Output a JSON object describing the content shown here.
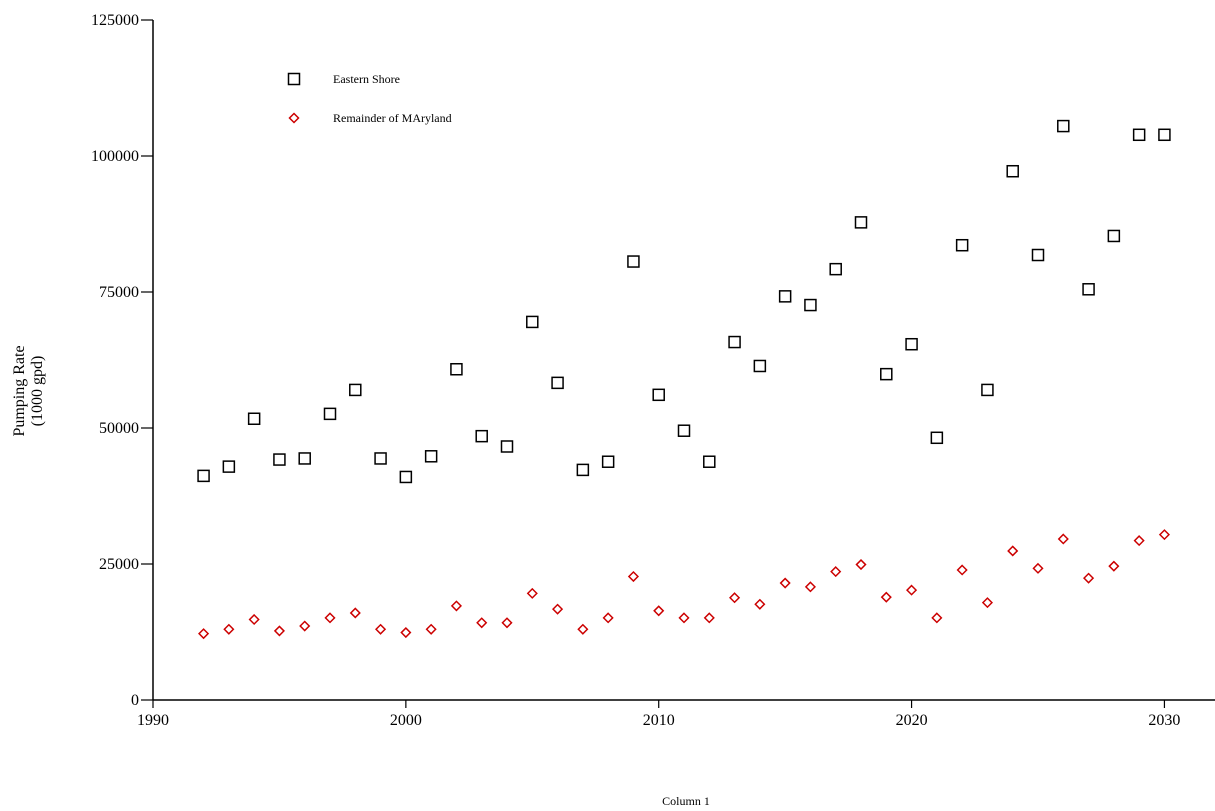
{
  "chart_data": {
    "type": "scatter",
    "xlabel": "Column 1",
    "ylabel": [
      "Pumping Rate",
      "(1000 gpd)"
    ],
    "xlim": [
      1990,
      2032
    ],
    "ylim": [
      0,
      125000
    ],
    "xticks": [
      1990,
      2000,
      2010,
      2020,
      2030
    ],
    "yticks": [
      0,
      25000,
      50000,
      75000,
      100000,
      125000
    ],
    "grid": false,
    "legend_position": "top-left",
    "series": [
      {
        "name": "Eastern Shore",
        "marker": "square",
        "color": "#000000",
        "x": [
          1992,
          1993,
          1994,
          1995,
          1996,
          1997,
          1998,
          1999,
          2000,
          2001,
          2002,
          2003,
          2004,
          2005,
          2006,
          2007,
          2008,
          2009,
          2010,
          2011,
          2012,
          2013,
          2014,
          2015,
          2016,
          2017,
          2018,
          2019,
          2020,
          2021,
          2022,
          2023,
          2024,
          2025,
          2026,
          2027,
          2028,
          2029,
          2030
        ],
        "y": [
          41200,
          42900,
          51700,
          44200,
          44400,
          52600,
          57000,
          44400,
          41000,
          44800,
          60800,
          48500,
          46600,
          69500,
          58300,
          42300,
          43800,
          80600,
          56100,
          49500,
          43800,
          65800,
          61400,
          74200,
          72600,
          79200,
          87800,
          59900,
          65400,
          48200,
          83600,
          57000,
          97200,
          81800,
          105500,
          75500,
          85300,
          103900,
          103900
        ]
      },
      {
        "name": "Remainder of MAryland",
        "marker": "diamond",
        "color": "#cc0000",
        "x": [
          1992,
          1993,
          1994,
          1995,
          1996,
          1997,
          1998,
          1999,
          2000,
          2001,
          2002,
          2003,
          2004,
          2005,
          2006,
          2007,
          2008,
          2009,
          2010,
          2011,
          2012,
          2013,
          2014,
          2015,
          2016,
          2017,
          2018,
          2019,
          2020,
          2021,
          2022,
          2023,
          2024,
          2025,
          2026,
          2027,
          2028,
          2029,
          2030
        ],
        "y": [
          12200,
          13000,
          14800,
          12700,
          13600,
          15100,
          16000,
          13000,
          12400,
          13000,
          17300,
          14200,
          14200,
          19600,
          16700,
          13000,
          15100,
          22700,
          16400,
          15100,
          15100,
          18800,
          17600,
          21500,
          20800,
          23600,
          24900,
          18900,
          20200,
          15100,
          23900,
          17900,
          27400,
          24200,
          29600,
          22400,
          24600,
          29300,
          30400
        ]
      }
    ]
  }
}
